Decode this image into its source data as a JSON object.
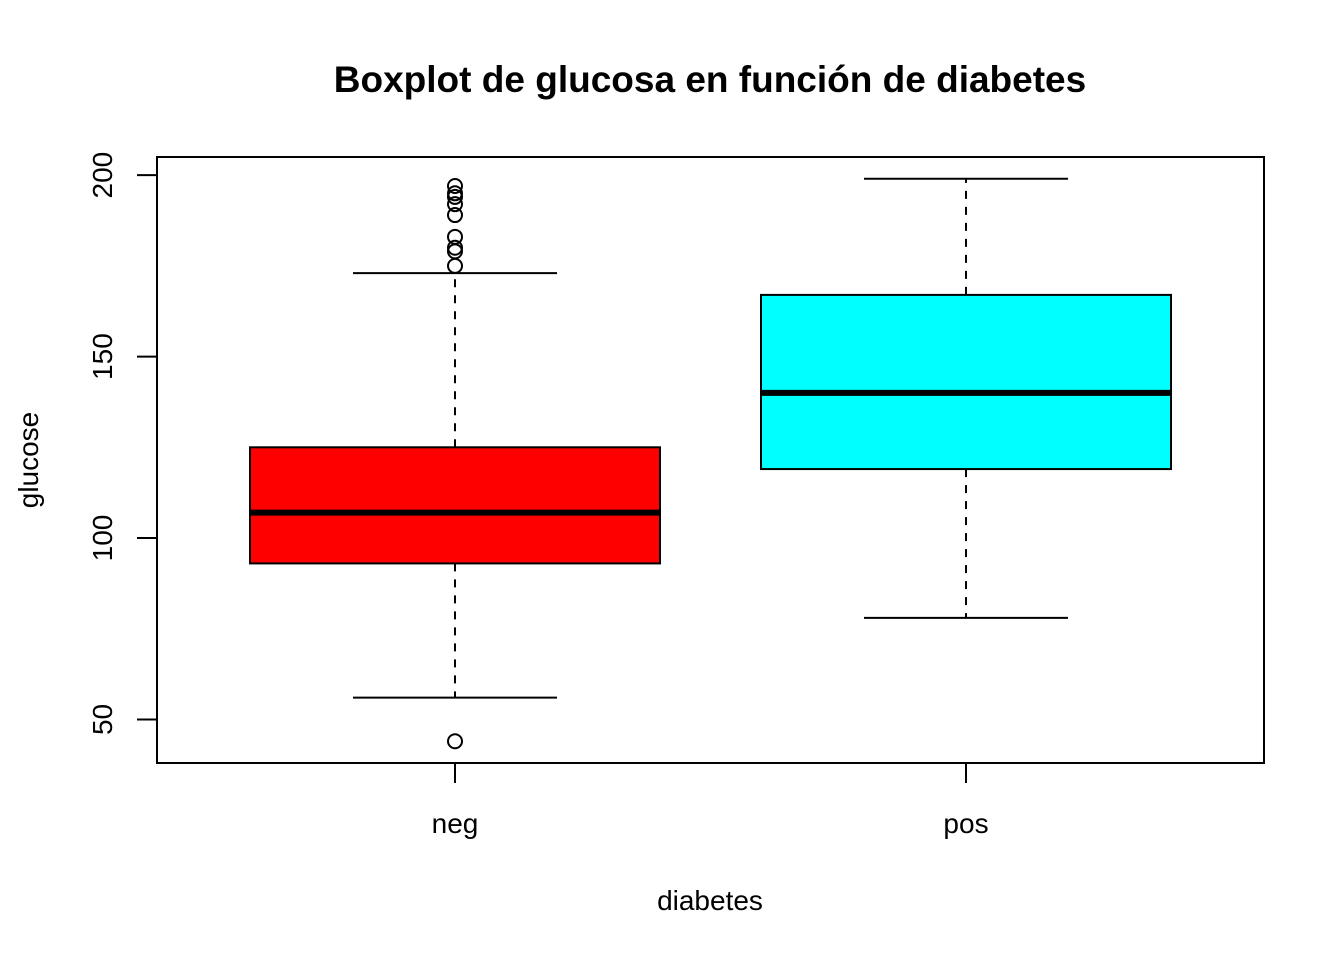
{
  "chart_data": {
    "type": "boxplot",
    "title": "Boxplot de glucosa en función de diabetes",
    "xlabel": "diabetes",
    "ylabel": "glucose",
    "ylim": [
      38,
      205
    ],
    "yticks": [
      50,
      100,
      150,
      200
    ],
    "categories": [
      "neg",
      "pos"
    ],
    "boxes": [
      {
        "category": "neg",
        "color": "#ff0000",
        "whisker_low": 56,
        "q1": 93,
        "median": 107,
        "q3": 125,
        "whisker_high": 173,
        "outliers": [
          44,
          175,
          179,
          180,
          183,
          189,
          192,
          194,
          195,
          197
        ]
      },
      {
        "category": "pos",
        "color": "#00ffff",
        "whisker_low": 78,
        "q1": 119,
        "median": 140,
        "q3": 167,
        "whisker_high": 199,
        "outliers": []
      }
    ],
    "grid": false,
    "legend": "none"
  }
}
